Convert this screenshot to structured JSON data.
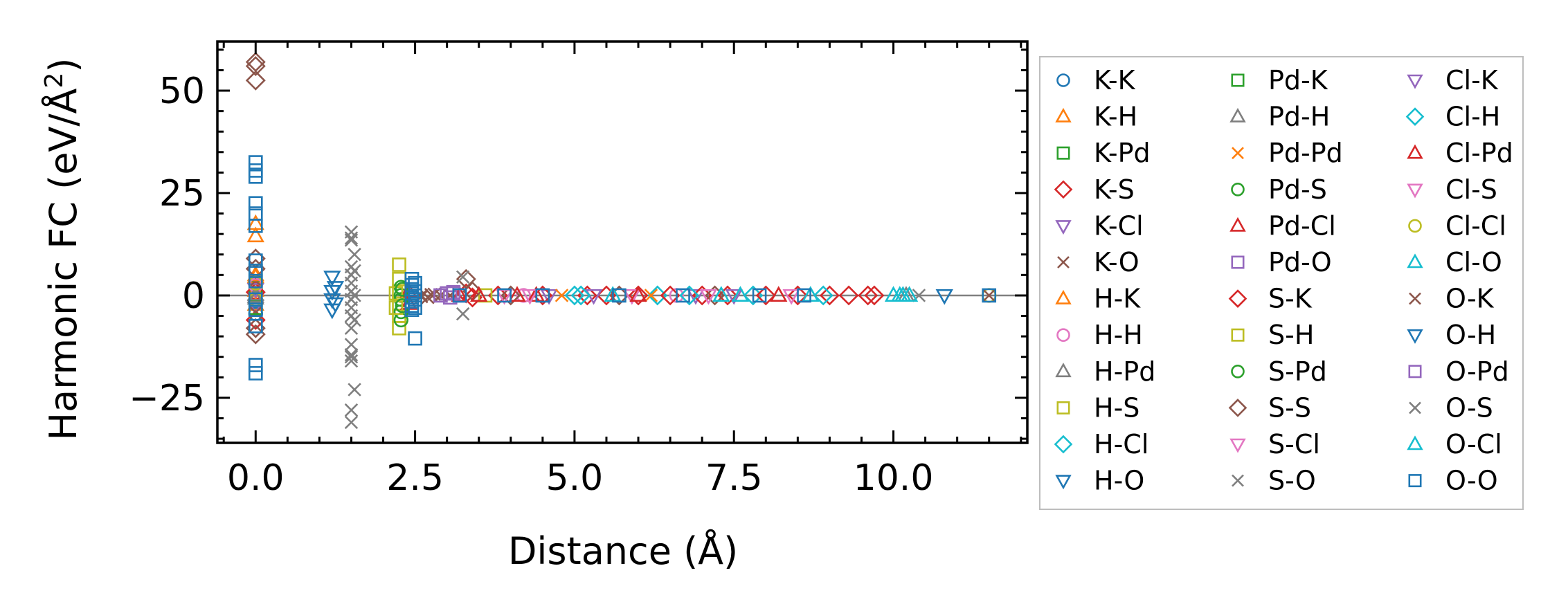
{
  "chart_data": {
    "type": "scatter",
    "title": "",
    "xlabel": "Distance (Å)",
    "ylabel": "Harmonic FC (eV/Å²)",
    "ylabel_main": "Harmonic FC (eV/Å",
    "ylabel_sup": "2",
    "ylabel_close": ")",
    "xlim": [
      -0.6,
      12.1
    ],
    "ylim": [
      -36,
      62
    ],
    "x_ticks": [
      0,
      2.5,
      5,
      7.5,
      10
    ],
    "x_tick_labels": [
      "0.0",
      "2.5",
      "5.0",
      "7.5",
      "10.0"
    ],
    "y_ticks": [
      -25,
      0,
      25,
      50
    ],
    "y_tick_labels": [
      "−25",
      "0",
      "25",
      "50"
    ],
    "grid": false,
    "zero_line": true,
    "legend_placement": "outside-right",
    "legend_columns": 3,
    "series": [
      {
        "name": "K-K",
        "marker": "circle",
        "color": "#1f77b4",
        "points": [
          [
            0,
            0.5
          ],
          [
            0,
            -1.5
          ],
          [
            0,
            3.2
          ],
          [
            0,
            -4.5
          ]
        ]
      },
      {
        "name": "K-H",
        "marker": "triangle-up",
        "color": "#ff7f0e",
        "points": [
          [
            0,
            1.2
          ],
          [
            0,
            -2.2
          ],
          [
            0,
            4.5
          ]
        ]
      },
      {
        "name": "K-Pd",
        "marker": "square",
        "color": "#2ca02c",
        "points": [
          [
            0,
            2.0
          ],
          [
            0,
            -3.1
          ]
        ]
      },
      {
        "name": "K-S",
        "marker": "diamond",
        "color": "#d62728",
        "points": [
          [
            0,
            0.8
          ],
          [
            0,
            -6.0
          ],
          [
            3.3,
            0.5
          ],
          [
            5.2,
            0
          ],
          [
            7.4,
            0
          ],
          [
            9.6,
            0
          ]
        ]
      },
      {
        "name": "K-Cl",
        "marker": "triangle-down",
        "color": "#9467bd",
        "points": [
          [
            0,
            1.5
          ],
          [
            0,
            -2.5
          ],
          [
            4.6,
            0
          ],
          [
            6.9,
            0
          ]
        ]
      },
      {
        "name": "K-O",
        "marker": "x",
        "color": "#8c564b",
        "points": [
          [
            0,
            3.6
          ],
          [
            0,
            -4.2
          ],
          [
            2.6,
            0
          ],
          [
            2.7,
            -0.5
          ],
          [
            2.8,
            0.3
          ],
          [
            2.9,
            0
          ],
          [
            3.05,
            0
          ]
        ]
      },
      {
        "name": "H-K",
        "marker": "triangle-up",
        "color": "#ff7f0e",
        "points": [
          [
            0,
            14.5
          ],
          [
            0,
            17.5
          ],
          [
            0,
            5.0
          ]
        ]
      },
      {
        "name": "H-H",
        "marker": "circle",
        "color": "#e377c2",
        "points": [
          [
            0,
            2.5
          ],
          [
            0,
            -1.0
          ],
          [
            4.2,
            0
          ],
          [
            6.6,
            0
          ]
        ]
      },
      {
        "name": "H-Pd",
        "marker": "triangle-up",
        "color": "#7f7f7f",
        "points": [
          [
            0,
            0.2
          ],
          [
            0,
            -0.7
          ]
        ]
      },
      {
        "name": "H-S",
        "marker": "square",
        "color": "#bcbd22",
        "points": [
          [
            2.25,
            7.5
          ],
          [
            2.25,
            4.0
          ],
          [
            2.25,
            1.0
          ],
          [
            2.25,
            -2.0
          ],
          [
            2.25,
            -5.0
          ],
          [
            2.25,
            -8.0
          ]
        ]
      },
      {
        "name": "H-Cl",
        "marker": "diamond",
        "color": "#17becf",
        "points": [
          [
            5.0,
            0
          ],
          [
            6.3,
            0
          ],
          [
            7.8,
            0
          ]
        ]
      },
      {
        "name": "H-O",
        "marker": "triangle-down",
        "color": "#1f77b4",
        "points": [
          [
            1.2,
            4.5
          ],
          [
            1.2,
            1.0
          ],
          [
            1.2,
            -1.0
          ],
          [
            1.2,
            -3.5
          ],
          [
            10.8,
            0
          ]
        ]
      },
      {
        "name": "Pd-K",
        "marker": "square",
        "color": "#2ca02c",
        "points": [
          [
            0,
            -3.0
          ],
          [
            0,
            6.0
          ]
        ]
      },
      {
        "name": "Pd-H",
        "marker": "triangle-up",
        "color": "#7f7f7f",
        "points": [
          [
            0,
            -0.3
          ],
          [
            10.2,
            0
          ]
        ]
      },
      {
        "name": "Pd-Pd",
        "marker": "x",
        "color": "#ff7f0e",
        "points": [
          [
            4.8,
            0
          ],
          [
            6.2,
            0
          ]
        ]
      },
      {
        "name": "Pd-S",
        "marker": "circle",
        "color": "#2ca02c",
        "points": [
          [
            2.28,
            2.0
          ],
          [
            2.28,
            -1.0
          ],
          [
            2.28,
            -4.0
          ],
          [
            2.28,
            -6.0
          ],
          [
            2.28,
            0
          ]
        ]
      },
      {
        "name": "Pd-Cl",
        "marker": "triangle-up",
        "color": "#d62728",
        "points": [
          [
            2.4,
            1.0
          ],
          [
            2.4,
            -2.0
          ],
          [
            3.2,
            0
          ],
          [
            4.4,
            0
          ]
        ]
      },
      {
        "name": "Pd-O",
        "marker": "square",
        "color": "#9467bd",
        "points": [
          [
            3.0,
            0.5
          ],
          [
            3.05,
            -0.5
          ],
          [
            3.1,
            0.8
          ],
          [
            3.2,
            0
          ]
        ]
      },
      {
        "name": "S-K",
        "marker": "diamond",
        "color": "#d62728",
        "points": [
          [
            3.4,
            -0.5
          ],
          [
            3.8,
            0
          ],
          [
            4.5,
            0
          ],
          [
            5.5,
            0
          ],
          [
            6.0,
            0
          ],
          [
            6.5,
            0
          ],
          [
            7.0,
            0
          ],
          [
            8.0,
            0
          ],
          [
            8.5,
            0
          ],
          [
            9.0,
            0
          ],
          [
            9.3,
            0
          ],
          [
            9.7,
            0
          ]
        ]
      },
      {
        "name": "S-H",
        "marker": "square",
        "color": "#bcbd22",
        "points": [
          [
            2.2,
            0.5
          ],
          [
            2.2,
            -3.0
          ],
          [
            3.6,
            0
          ]
        ]
      },
      {
        "name": "S-Pd",
        "marker": "circle",
        "color": "#2ca02c",
        "points": [
          [
            2.3,
            -2.5
          ],
          [
            2.3,
            1.5
          ]
        ]
      },
      {
        "name": "S-S",
        "marker": "diamond",
        "color": "#8c564b",
        "points": [
          [
            0,
            57
          ],
          [
            0,
            56
          ],
          [
            0,
            52.5
          ],
          [
            0,
            9.0
          ],
          [
            0,
            6.5
          ],
          [
            0,
            -8.0
          ],
          [
            0,
            -9.5
          ],
          [
            3.3,
            4.0
          ],
          [
            3.4,
            1.0
          ],
          [
            4.0,
            0
          ],
          [
            5.7,
            0
          ],
          [
            7.2,
            0
          ]
        ]
      },
      {
        "name": "S-Cl",
        "marker": "triangle-down",
        "color": "#e377c2",
        "points": [
          [
            3.9,
            0
          ],
          [
            5.9,
            0
          ],
          [
            8.4,
            0
          ]
        ]
      },
      {
        "name": "S-O",
        "marker": "x",
        "color": "#7f7f7f",
        "points": [
          [
            1.5,
            15.5
          ],
          [
            1.5,
            13.5
          ],
          [
            1.5,
            7.0
          ],
          [
            1.5,
            5.0
          ],
          [
            1.5,
            3.0
          ],
          [
            1.5,
            1.0
          ],
          [
            1.5,
            -1.0
          ],
          [
            1.5,
            -3.0
          ],
          [
            1.5,
            -5.0
          ],
          [
            1.5,
            -8.0
          ],
          [
            1.5,
            -12.0
          ],
          [
            1.5,
            -14.5
          ],
          [
            1.5,
            -16.0
          ],
          [
            1.5,
            -28.0
          ],
          [
            1.5,
            -31.0
          ],
          [
            1.55,
            -23.0
          ],
          [
            1.55,
            -6.0
          ],
          [
            1.55,
            10.0
          ],
          [
            1.55,
            6.0
          ],
          [
            3.25,
            -4.5
          ],
          [
            3.25,
            4.5
          ],
          [
            10.4,
            0
          ]
        ]
      },
      {
        "name": "Cl-K",
        "marker": "triangle-down",
        "color": "#9467bd",
        "points": [
          [
            5.3,
            0
          ],
          [
            7.5,
            0
          ]
        ]
      },
      {
        "name": "Cl-H",
        "marker": "diamond",
        "color": "#17becf",
        "points": [
          [
            5.1,
            0
          ],
          [
            6.8,
            0
          ],
          [
            8.9,
            0
          ]
        ]
      },
      {
        "name": "Cl-Pd",
        "marker": "triangle-up",
        "color": "#d62728",
        "points": [
          [
            3.5,
            0
          ],
          [
            4.1,
            0
          ],
          [
            6.0,
            0
          ],
          [
            8.2,
            0
          ]
        ]
      },
      {
        "name": "Cl-S",
        "marker": "triangle-down",
        "color": "#e377c2",
        "points": [
          [
            4.3,
            0
          ],
          [
            7.1,
            0
          ]
        ]
      },
      {
        "name": "Cl-Cl",
        "marker": "circle",
        "color": "#bcbd22",
        "points": [
          [
            0,
            3.0
          ],
          [
            0,
            -1.0
          ],
          [
            11.5,
            0
          ]
        ]
      },
      {
        "name": "Cl-O",
        "marker": "triangle-up",
        "color": "#17becf",
        "points": [
          [
            5.6,
            0
          ],
          [
            7.3,
            0
          ],
          [
            7.6,
            0
          ],
          [
            8.7,
            0
          ],
          [
            10.0,
            0
          ],
          [
            10.15,
            0
          ]
        ]
      },
      {
        "name": "O-K",
        "marker": "x",
        "color": "#8c564b",
        "points": [
          [
            2.6,
            -0.3
          ],
          [
            2.75,
            0.2
          ],
          [
            11.5,
            0
          ]
        ]
      },
      {
        "name": "O-H",
        "marker": "triangle-down",
        "color": "#1f77b4",
        "points": [
          [
            1.25,
            2.0
          ],
          [
            1.25,
            -2.0
          ]
        ]
      },
      {
        "name": "O-Pd",
        "marker": "square",
        "color": "#9467bd",
        "points": [
          [
            2.9,
            0
          ],
          [
            3.1,
            0.5
          ]
        ]
      },
      {
        "name": "O-S",
        "marker": "x",
        "color": "#7f7f7f",
        "points": [
          [
            1.5,
            14.0
          ],
          [
            1.5,
            -15.0
          ],
          [
            1.55,
            0
          ]
        ]
      },
      {
        "name": "O-Cl",
        "marker": "triangle-up",
        "color": "#17becf",
        "points": [
          [
            10.1,
            0
          ],
          [
            10.25,
            0
          ]
        ]
      },
      {
        "name": "O-O",
        "marker": "square",
        "color": "#1f77b4",
        "points": [
          [
            0,
            32.5
          ],
          [
            0,
            30.5
          ],
          [
            0,
            29.0
          ],
          [
            0,
            22.5
          ],
          [
            0,
            20.0
          ],
          [
            0,
            17.0
          ],
          [
            0,
            8.5
          ],
          [
            0,
            6.0
          ],
          [
            0,
            3.5
          ],
          [
            0,
            -1.0
          ],
          [
            0,
            -3.5
          ],
          [
            0,
            -7.5
          ],
          [
            0,
            -17.0
          ],
          [
            0,
            -19.0
          ],
          [
            2.45,
            4.0
          ],
          [
            2.45,
            2.5
          ],
          [
            2.45,
            1.5
          ],
          [
            2.45,
            0.5
          ],
          [
            2.45,
            -0.5
          ],
          [
            2.45,
            -1.5
          ],
          [
            2.45,
            -2.5
          ],
          [
            2.45,
            -3.5
          ],
          [
            2.5,
            3.0
          ],
          [
            2.5,
            -3.0
          ],
          [
            2.5,
            1.0
          ],
          [
            2.5,
            -1.0
          ],
          [
            2.5,
            -10.5
          ],
          [
            3.2,
            0
          ],
          [
            3.9,
            0
          ],
          [
            4.5,
            0
          ],
          [
            5.7,
            0
          ],
          [
            6.7,
            0
          ],
          [
            7.9,
            0
          ],
          [
            8.6,
            0
          ],
          [
            11.5,
            0
          ]
        ]
      }
    ]
  }
}
